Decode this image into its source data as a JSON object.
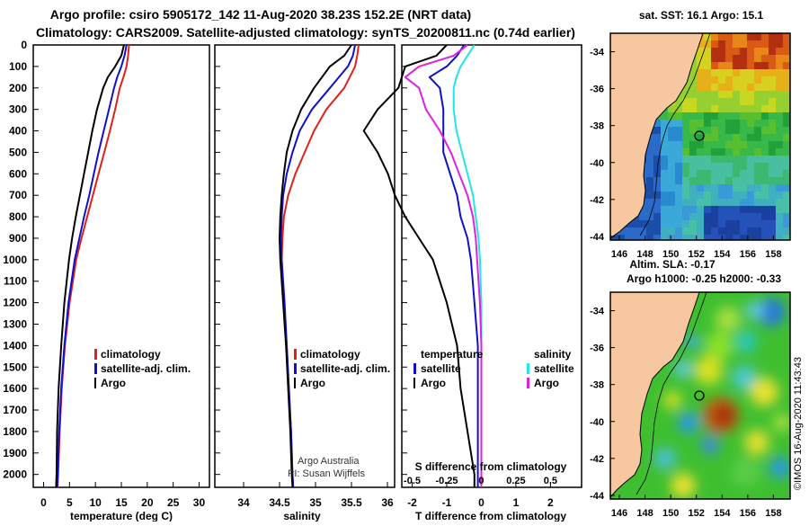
{
  "title": {
    "line1": "Argo profile: csiro 5905172_142 11-Aug-2020 38.23S 152.2E (NRT data)",
    "line2": "Climatology: CARS2009. Satellite-adjusted climatology: synTS_20200811.nc (0.74d earlier)"
  },
  "colors": {
    "climatology": "#e0201b",
    "satellite": "#1010cc",
    "argo": "#000000",
    "satellite_sal": "#22e5e5",
    "argo_sal": "#e020e0",
    "land": "#f7c8a0"
  },
  "depth_axis": {
    "ticks": [
      0,
      100,
      200,
      300,
      400,
      500,
      600,
      700,
      800,
      900,
      1000,
      1100,
      1200,
      1300,
      1400,
      1500,
      1600,
      1700,
      1800,
      1900,
      2000
    ],
    "range": [
      0,
      2060
    ]
  },
  "chart_data": [
    {
      "type": "line",
      "name": "temperature",
      "xlabel": "temperature (deg C)",
      "xlim": [
        -2,
        32
      ],
      "xticks": [
        0,
        5,
        10,
        15,
        20,
        25,
        30
      ],
      "ylim": [
        0,
        2060
      ],
      "legend": {
        "placement": "lower-right",
        "items": [
          "climatology",
          "satellite-adj. clim.",
          "Argo"
        ]
      },
      "series": [
        {
          "name": "climatology",
          "color": "#e0201b",
          "depth": [
            0,
            50,
            100,
            150,
            200,
            300,
            400,
            500,
            600,
            700,
            800,
            900,
            1000,
            1200,
            1400,
            1600,
            1800,
            2000,
            2060
          ],
          "values": [
            16.5,
            16.3,
            16.0,
            15.4,
            14.7,
            13.8,
            12.8,
            11.7,
            10.6,
            9.5,
            8.4,
            7.3,
            6.3,
            5.0,
            4.1,
            3.5,
            3.1,
            2.8,
            2.7
          ]
        },
        {
          "name": "satellite-adj. clim.",
          "color": "#1010cc",
          "depth": [
            0,
            50,
            100,
            150,
            200,
            300,
            400,
            500,
            600,
            700,
            800,
            900,
            1000,
            1200,
            1400,
            1600,
            1800,
            2000,
            2060
          ],
          "values": [
            16.0,
            15.6,
            15.0,
            14.2,
            13.6,
            12.6,
            11.6,
            10.6,
            9.7,
            8.8,
            7.8,
            6.9,
            6.0,
            4.8,
            4.0,
            3.4,
            3.0,
            2.7,
            2.6
          ]
        },
        {
          "name": "Argo",
          "color": "#000000",
          "depth": [
            0,
            50,
            100,
            150,
            200,
            300,
            400,
            500,
            600,
            700,
            800,
            900,
            1000,
            1200,
            1400,
            1600,
            1800,
            2000,
            2060
          ],
          "values": [
            15.5,
            15.0,
            13.8,
            12.4,
            11.5,
            10.3,
            9.4,
            8.6,
            7.8,
            7.0,
            6.2,
            5.5,
            4.9,
            4.0,
            3.4,
            2.9,
            2.6,
            2.5,
            2.4
          ]
        }
      ]
    },
    {
      "type": "line",
      "name": "salinity",
      "xlabel": "salinity",
      "xlim": [
        33.6,
        36.1
      ],
      "xticks": [
        34,
        34.5,
        35,
        35.5,
        36
      ],
      "ylim": [
        0,
        2060
      ],
      "legend": {
        "placement": "lower-right",
        "items": [
          "climatology",
          "satellite-adj. clim.",
          "Argo"
        ]
      },
      "annotation": [
        "Argo Australia",
        "PI: Susan Wijffels"
      ],
      "series": [
        {
          "name": "climatology",
          "color": "#e0201b",
          "depth": [
            0,
            50,
            100,
            200,
            300,
            400,
            500,
            600,
            700,
            800,
            900,
            1000,
            1200,
            1400,
            1600,
            1800,
            2000,
            2060
          ],
          "values": [
            35.6,
            35.58,
            35.55,
            35.4,
            35.15,
            34.98,
            34.85,
            34.72,
            34.62,
            34.56,
            34.54,
            34.53,
            34.56,
            34.6,
            34.63,
            34.66,
            34.68,
            34.69
          ]
        },
        {
          "name": "satellite-adj. clim.",
          "color": "#1010cc",
          "depth": [
            0,
            50,
            100,
            200,
            300,
            400,
            500,
            600,
            700,
            800,
            900,
            1000,
            1200,
            1400,
            1600,
            1800,
            2000,
            2060
          ],
          "values": [
            35.55,
            35.52,
            35.45,
            35.2,
            34.95,
            34.78,
            34.68,
            34.6,
            34.55,
            34.53,
            34.52,
            34.53,
            34.57,
            34.6,
            34.63,
            34.66,
            34.68,
            34.69
          ]
        },
        {
          "name": "Argo",
          "color": "#000000",
          "depth": [
            0,
            50,
            100,
            200,
            300,
            400,
            500,
            600,
            700,
            800,
            900,
            1000,
            1200,
            1400,
            1600,
            1800,
            2000,
            2060
          ],
          "values": [
            35.5,
            35.4,
            35.2,
            34.98,
            34.8,
            34.68,
            34.6,
            34.56,
            34.53,
            34.51,
            34.5,
            34.51,
            34.55,
            34.59,
            34.62,
            34.65,
            34.67,
            34.68
          ]
        }
      ]
    },
    {
      "type": "line",
      "name": "difference",
      "xlabel": "T difference from climatology",
      "xlabel2": "S difference from climatology",
      "xlim": [
        -2.3,
        2.9
      ],
      "xticks": [
        -2,
        -1,
        0,
        1,
        2
      ],
      "sal_ticks": [
        -0.5,
        -0.25,
        0,
        0.25,
        0.5
      ],
      "sal_tick_labels": [
        "-0.5",
        "-0.25",
        "0",
        "0.25",
        "0.5"
      ],
      "ylim": [
        0,
        2060
      ],
      "legend": {
        "placement": "lower",
        "temp_heading": "temperature",
        "sal_heading": "salinity",
        "temp_items": [
          "satellite",
          "Argo"
        ],
        "sal_items": [
          "satellite",
          "Argo"
        ]
      },
      "series": [
        {
          "name": "T satellite",
          "color": "#1010cc",
          "depth": [
            0,
            50,
            100,
            150,
            200,
            300,
            400,
            500,
            600,
            700,
            800,
            900,
            1000,
            1200,
            1400,
            1600,
            1800,
            2000,
            2060
          ],
          "values": [
            -0.5,
            -0.7,
            -1.0,
            -1.5,
            -1.2,
            -1.1,
            -1.1,
            -1.1,
            -0.9,
            -0.7,
            -0.6,
            -0.4,
            -0.3,
            -0.2,
            -0.1,
            -0.1,
            -0.1,
            -0.1,
            -0.1
          ]
        },
        {
          "name": "T Argo",
          "color": "#000000",
          "depth": [
            0,
            50,
            100,
            150,
            200,
            300,
            400,
            500,
            600,
            700,
            800,
            900,
            1000,
            1200,
            1400,
            1600,
            1800,
            2000,
            2060
          ],
          "values": [
            -1.0,
            -1.3,
            -2.2,
            -2.3,
            -2.4,
            -3.0,
            -3.4,
            -3.0,
            -2.7,
            -2.5,
            -2.2,
            -1.8,
            -1.4,
            -1.0,
            -0.7,
            -0.6,
            -0.4,
            -0.2,
            -0.2
          ]
        },
        {
          "name": "S satellite",
          "color": "#22e5e5",
          "depth": [
            0,
            50,
            100,
            150,
            200,
            300,
            400,
            500,
            600,
            700,
            800,
            900,
            1000,
            1200,
            1400,
            1600,
            1800,
            2000,
            2060
          ],
          "values": [
            -0.05,
            -0.1,
            -0.15,
            -0.18,
            -0.2,
            -0.2,
            -0.18,
            -0.14,
            -0.1,
            -0.06,
            -0.04,
            -0.02,
            -0.01,
            0,
            0,
            0,
            0,
            0,
            0
          ]
        },
        {
          "name": "S Argo",
          "color": "#e020e0",
          "depth": [
            0,
            50,
            100,
            150,
            200,
            300,
            400,
            500,
            600,
            700,
            800,
            900,
            1000,
            1200,
            1400,
            1600,
            1800,
            2000,
            2060
          ],
          "values": [
            -0.1,
            -0.2,
            -0.45,
            -0.55,
            -0.45,
            -0.4,
            -0.3,
            -0.22,
            -0.16,
            -0.1,
            -0.06,
            -0.04,
            -0.03,
            -0.01,
            0,
            0,
            0,
            0,
            0
          ]
        }
      ]
    }
  ],
  "maps": [
    {
      "name": "sst-map",
      "title": "sat. SST: 16.1 Argo: 15.1",
      "lat_ticks": [
        -34,
        -36,
        -38,
        -40,
        -42,
        -44
      ],
      "lon_ticks": [
        146,
        148,
        150,
        152,
        154,
        156,
        158
      ]
    },
    {
      "name": "sla-map",
      "title1": "Altim. SLA: -0.17",
      "title2": "Argo h1000: -0.25 h2000: -0.33",
      "lat_ticks": [
        -34,
        -36,
        -38,
        -40,
        -42,
        -44
      ],
      "lon_ticks": [
        146,
        148,
        150,
        152,
        154,
        156,
        158
      ]
    }
  ],
  "footer": {
    "imos": "©IMOS 16-Aug-2020 11:43:43"
  }
}
